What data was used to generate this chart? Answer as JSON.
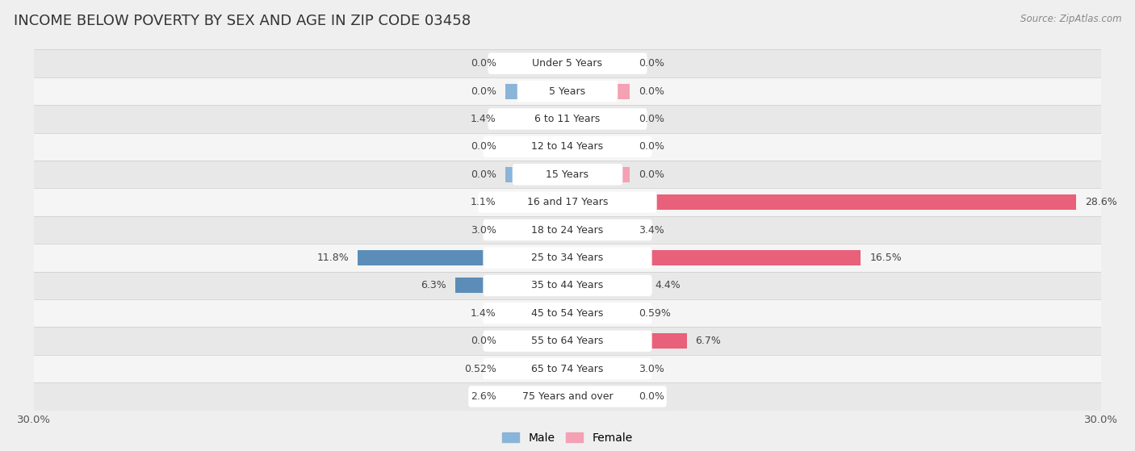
{
  "title": "INCOME BELOW POVERTY BY SEX AND AGE IN ZIP CODE 03458",
  "source": "Source: ZipAtlas.com",
  "categories": [
    "Under 5 Years",
    "5 Years",
    "6 to 11 Years",
    "12 to 14 Years",
    "15 Years",
    "16 and 17 Years",
    "18 to 24 Years",
    "25 to 34 Years",
    "35 to 44 Years",
    "45 to 54 Years",
    "55 to 64 Years",
    "65 to 74 Years",
    "75 Years and over"
  ],
  "male": [
    0.0,
    0.0,
    1.4,
    0.0,
    0.0,
    1.1,
    3.0,
    11.8,
    6.3,
    1.4,
    0.0,
    0.52,
    2.6
  ],
  "female": [
    0.0,
    0.0,
    0.0,
    0.0,
    0.0,
    28.6,
    3.4,
    16.5,
    4.4,
    0.59,
    6.7,
    3.0,
    0.0
  ],
  "male_color": "#8ab4d8",
  "female_color": "#f4a0b5",
  "male_dark_color": "#5b8db8",
  "female_dark_color": "#e8607a",
  "row_colors": [
    "#e8e8e8",
    "#f5f5f5"
  ],
  "axis_limit": 30.0,
  "min_bar": 3.5,
  "bar_height": 0.55,
  "title_fontsize": 13,
  "label_fontsize": 9,
  "tick_fontsize": 9.5,
  "category_fontsize": 9,
  "legend_fontsize": 10,
  "pill_color": "#ffffff"
}
